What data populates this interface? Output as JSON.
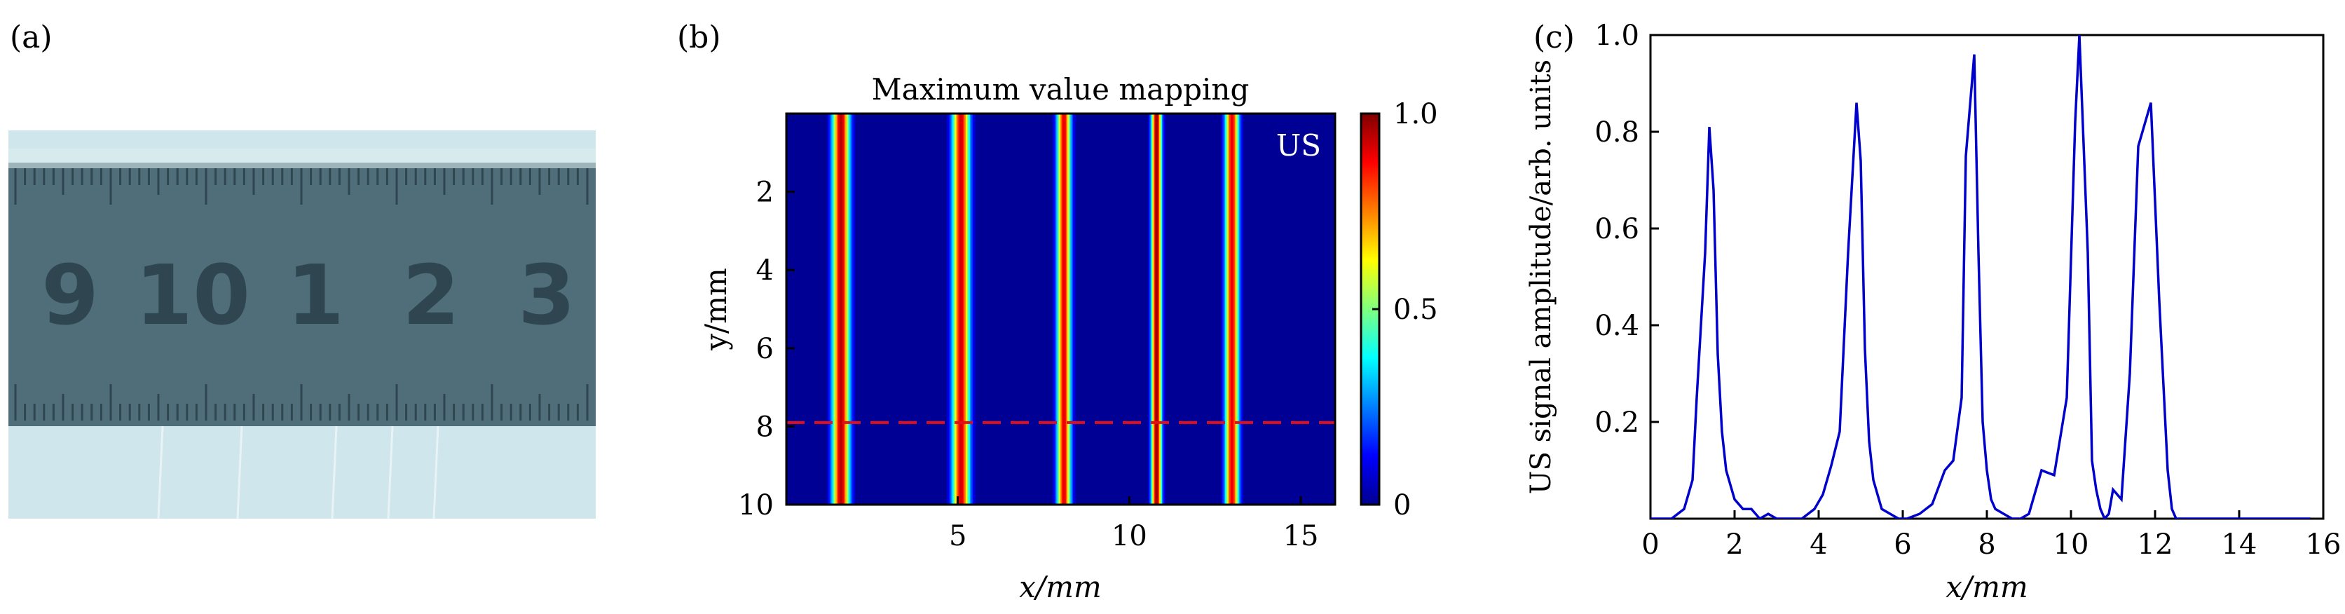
{
  "panels": {
    "a": {
      "label": "(a)",
      "photo_colors": {
        "background": "#cfe6ec",
        "ruler": "#4f6e79",
        "ruler_dark": "#2f4650",
        "wires": "#e9f3f6"
      },
      "ruler_numbers": [
        "9",
        "10",
        "1",
        "2",
        "3"
      ]
    },
    "b": {
      "label": "(b)"
    },
    "c": {
      "label": "(c)"
    }
  },
  "chart_data": [
    {
      "type": "heatmap",
      "title": "Maximum value mapping",
      "xlabel": "x/mm",
      "ylabel": "y/mm",
      "annotation": "US",
      "xlim": [
        0,
        16
      ],
      "ylim": [
        10,
        0
      ],
      "x_ticks": [
        5,
        10,
        15
      ],
      "y_ticks": [
        2,
        4,
        6,
        8,
        10
      ],
      "colorbar": {
        "range": [
          0,
          1
        ],
        "ticks": [
          "1.0",
          "0.5",
          "0"
        ],
        "colormap": "jet"
      },
      "background_value": 0.02,
      "stripes": [
        {
          "center_x": 1.6,
          "peak": 0.95,
          "width_mm": 0.25
        },
        {
          "center_x": 5.1,
          "peak": 0.92,
          "width_mm": 0.25
        },
        {
          "center_x": 8.1,
          "peak": 0.9,
          "width_mm": 0.2
        },
        {
          "center_x": 10.8,
          "peak": 0.98,
          "width_mm": 0.15
        },
        {
          "center_x": 13.0,
          "peak": 0.9,
          "width_mm": 0.2
        }
      ],
      "dashed_line": {
        "y": 7.9,
        "color": "#e0101a"
      }
    },
    {
      "type": "line",
      "xlabel": "x/mm",
      "ylabel": "US signal amplitude/arb. units",
      "xlim": [
        0,
        16
      ],
      "ylim": [
        0,
        1
      ],
      "x_ticks": [
        0,
        2,
        4,
        6,
        8,
        10,
        12,
        14,
        16
      ],
      "y_ticks": [
        0.2,
        0.4,
        0.6,
        0.8,
        1.0
      ],
      "y_tick_labels": [
        "0.2",
        "0.4",
        "0.6",
        "0.8",
        "1.0"
      ],
      "series": [
        {
          "color": "#0000cc",
          "x": [
            0.0,
            0.5,
            0.8,
            1.0,
            1.1,
            1.3,
            1.4,
            1.5,
            1.6,
            1.7,
            1.8,
            2.0,
            2.2,
            2.4,
            2.6,
            2.8,
            3.0,
            3.3,
            3.6,
            3.9,
            4.1,
            4.3,
            4.5,
            4.7,
            4.9,
            5.0,
            5.1,
            5.2,
            5.3,
            5.5,
            5.7,
            5.9,
            6.1,
            6.4,
            6.7,
            7.0,
            7.2,
            7.4,
            7.5,
            7.7,
            7.8,
            7.9,
            8.0,
            8.1,
            8.2,
            8.4,
            8.6,
            8.8,
            9.0,
            9.3,
            9.6,
            9.9,
            10.1,
            10.2,
            10.4,
            10.5,
            10.6,
            10.7,
            10.8,
            10.9,
            11.0,
            11.2,
            11.4,
            11.6,
            11.9,
            12.1,
            12.3,
            12.4,
            12.5,
            12.7,
            12.9,
            13.0,
            13.1,
            13.3,
            13.5,
            13.8,
            14.2,
            14.6,
            15.0,
            15.4,
            15.7
          ],
          "y": [
            0.0,
            0.0,
            0.02,
            0.08,
            0.25,
            0.55,
            0.81,
            0.68,
            0.34,
            0.18,
            0.1,
            0.04,
            0.02,
            0.02,
            0.0,
            0.01,
            0.0,
            0.0,
            0.0,
            0.02,
            0.05,
            0.11,
            0.18,
            0.55,
            0.86,
            0.74,
            0.35,
            0.16,
            0.08,
            0.02,
            0.01,
            0.0,
            0.0,
            0.01,
            0.03,
            0.1,
            0.12,
            0.25,
            0.75,
            0.96,
            0.55,
            0.2,
            0.1,
            0.04,
            0.02,
            0.01,
            0.0,
            0.0,
            0.01,
            0.1,
            0.09,
            0.25,
            0.82,
            1.0,
            0.55,
            0.12,
            0.06,
            0.02,
            0.0,
            0.01,
            0.06,
            0.04,
            0.3,
            0.77,
            0.86,
            0.45,
            0.1,
            0.02,
            0.0,
            0.0,
            0.0,
            0.0,
            0.0,
            0.0,
            0.0,
            0.0,
            0.0,
            0.0,
            0.0,
            0.0,
            0.0
          ]
        }
      ]
    }
  ]
}
